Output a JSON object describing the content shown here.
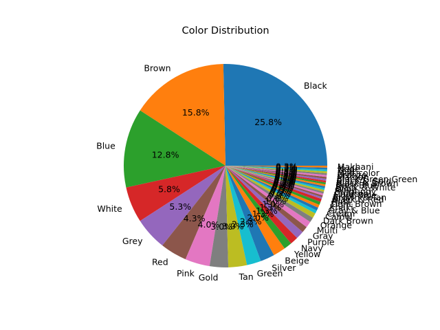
{
  "chart_data": {
    "type": "pie",
    "title": "Color Distribution",
    "start_angle_deg": 0,
    "direction": "counterclockwise",
    "percent_format": "one-decimal",
    "slices": [
      {
        "label": " Black",
        "value": 25.8,
        "pct_label": "25.8%",
        "color": "#1f77b4"
      },
      {
        "label": " Brown",
        "value": 15.8,
        "pct_label": "15.8%",
        "color": "#ff7f0e"
      },
      {
        "label": " Blue",
        "value": 12.8,
        "pct_label": "12.8%",
        "color": "#2ca02c"
      },
      {
        "label": " White",
        "value": 5.8,
        "pct_label": "5.8%",
        "color": "#d62728"
      },
      {
        "label": " Grey",
        "value": 5.3,
        "pct_label": "5.3%",
        "color": "#9467bd"
      },
      {
        "label": " Red",
        "value": 4.3,
        "pct_label": "4.3%",
        "color": "#8c564b"
      },
      {
        "label": " Pink",
        "value": 4.0,
        "pct_label": "4.0%",
        "color": "#e377c2"
      },
      {
        "label": " Gold",
        "value": 3.0,
        "pct_label": "3.0%",
        "color": "#7f7f7f"
      },
      {
        "label": " Tan",
        "value": 3.0,
        "pct_label": "3.0%",
        "color": "#bcbd22"
      },
      {
        "label": " Green",
        "value": 2.3,
        "pct_label": "2.3%",
        "color": "#17becf"
      },
      {
        "label": " Silver",
        "value": 2.3,
        "pct_label": "2.3%",
        "color": "#1f77b4"
      },
      {
        "label": " Beige",
        "value": 2.0,
        "pct_label": "2.0%",
        "color": "#ff7f0e"
      },
      {
        "label": " Yellow",
        "value": 1.3,
        "pct_label": "1.3%",
        "color": "#2ca02c"
      },
      {
        "label": " Navy",
        "value": 1.3,
        "pct_label": "1.3%",
        "color": "#d62728"
      },
      {
        "label": " Purple",
        "value": 1.3,
        "pct_label": "1.3%",
        "color": "#9467bd"
      },
      {
        "label": " Gray",
        "value": 1.0,
        "pct_label": "1.0%",
        "color": "#8c564b"
      },
      {
        "label": " Multi",
        "value": 1.0,
        "pct_label": "1.0%",
        "color": "#e377c2"
      },
      {
        "label": " Orange",
        "value": 0.8,
        "pct_label": "0.8%",
        "color": "#7f7f7f"
      },
      {
        "label": " Dark Brown",
        "value": 0.8,
        "pct_label": "0.8%",
        "color": "#bcbd22"
      },
      {
        "label": " Camel",
        "value": 0.5,
        "pct_label": "0.5%",
        "color": "#17becf"
      },
      {
        "label": " Cream",
        "value": 0.5,
        "pct_label": "0.5%",
        "color": "#1f77b4"
      },
      {
        "label": " Gray & Blue",
        "value": 0.5,
        "pct_label": "0.5%",
        "color": "#ff7f0e"
      },
      {
        "label": " Khaki",
        "value": 0.5,
        "pct_label": "0.5%",
        "color": "#2ca02c"
      },
      {
        "label": " Light Brown",
        "value": 0.5,
        "pct_label": "0.5%",
        "color": "#d62728"
      },
      {
        "label": " Rust",
        "value": 0.3,
        "pct_label": "0.3%",
        "color": "#9467bd"
      },
      {
        "label": " Black & Red",
        "value": 0.3,
        "pct_label": "0.3%",
        "color": "#8c564b"
      },
      {
        "label": " Brown & Tan",
        "value": 0.3,
        "pct_label": "0.3%",
        "color": "#e377c2"
      },
      {
        "label": " Light Blue",
        "value": 0.3,
        "pct_label": "0.3%",
        "color": "#7f7f7f"
      },
      {
        "label": " Charcoal",
        "value": 0.3,
        "pct_label": "0.3%",
        "color": "#bcbd22"
      },
      {
        "label": " Burgundy",
        "value": 0.3,
        "pct_label": "0.3%",
        "color": "#17becf"
      },
      {
        "label": " Olive",
        "value": 0.3,
        "pct_label": "0.3%",
        "color": "#1f77b4"
      },
      {
        "label": " Black & White",
        "value": 0.3,
        "pct_label": "0.3%",
        "color": "#ff7f0e"
      },
      {
        "label": " Dark Blue",
        "value": 0.3,
        "pct_label": "0.3%",
        "color": "#2ca02c"
      },
      {
        "label": " Black & Brown",
        "value": 0.3,
        "pct_label": "0.3%",
        "color": "#d62728"
      },
      {
        "label": " Black & Gold",
        "value": 0.3,
        "pct_label": "0.3%",
        "color": "#9467bd"
      },
      {
        "label": " Black/Green Green",
        "value": 0.3,
        "pct_label": "0.3%",
        "color": "#8c564b"
      },
      {
        "label": " Maroon",
        "value": 0.3,
        "pct_label": "0.3%",
        "color": "#e377c2"
      },
      {
        "label": " Bronze",
        "value": 0.3,
        "pct_label": "0.3%",
        "color": "#7f7f7f"
      },
      {
        "label": " Multicolor",
        "value": 0.3,
        "pct_label": "0.3%",
        "color": "#bcbd22"
      },
      {
        "label": " Teal",
        "value": 0.3,
        "pct_label": "0.3%",
        "color": "#17becf"
      },
      {
        "label": " Nude",
        "value": 0.3,
        "pct_label": "0.3%",
        "color": "#1f77b4"
      },
      {
        "label": " Makhani",
        "value": 0.3,
        "pct_label": "0.3%",
        "color": "#ff7f0e"
      }
    ]
  }
}
